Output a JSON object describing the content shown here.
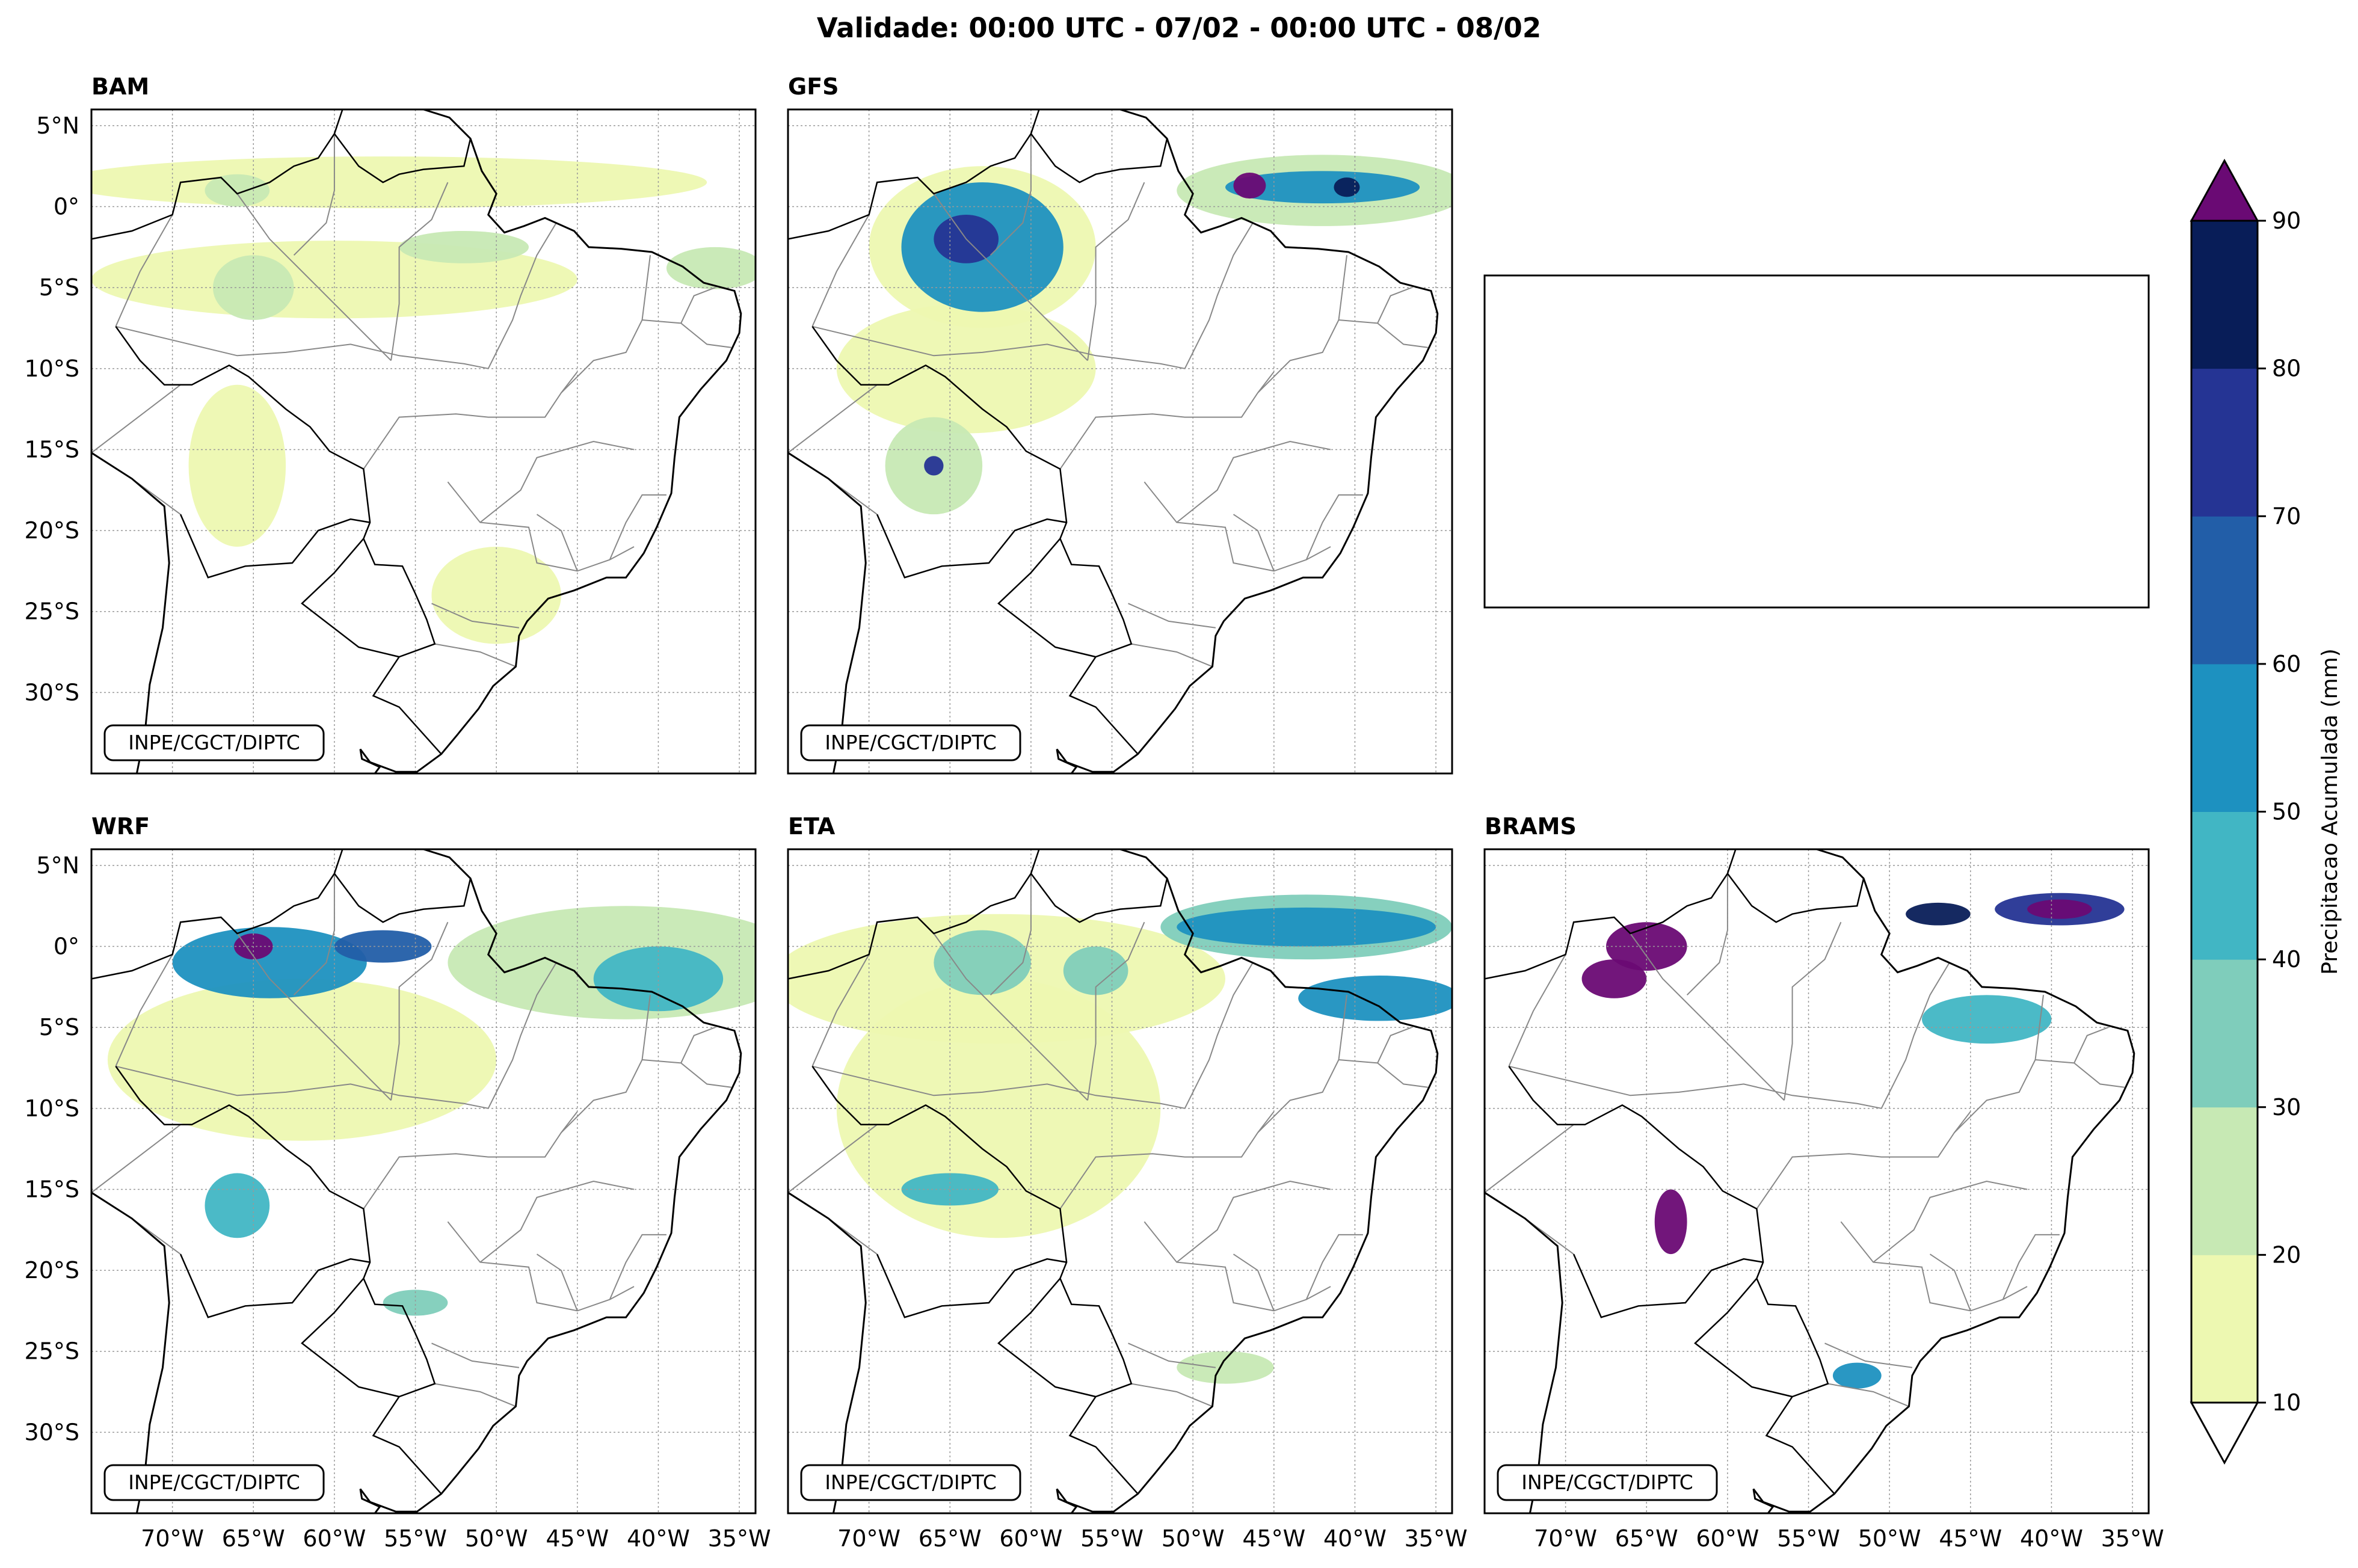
{
  "figure_title": "Validade: 00:00 UTC - 07/02 - 00:00 UTC - 08/02",
  "credit": "INPE/CGCT/DIPTC",
  "panels": [
    {
      "name": "BAM",
      "title": "BAM"
    },
    {
      "name": "GFS",
      "title": "GFS"
    },
    {
      "name": "EMPTY",
      "title": ""
    },
    {
      "name": "WRF",
      "title": "WRF"
    },
    {
      "name": "ETA",
      "title": "ETA"
    },
    {
      "name": "BRAMS",
      "title": "BRAMS"
    }
  ],
  "lat_ticks": [
    "5°N",
    "0°",
    "5°S",
    "10°S",
    "15°S",
    "20°S",
    "25°S",
    "30°S"
  ],
  "lon_ticks": [
    "70°W",
    "65°W",
    "60°W",
    "55°W",
    "50°W",
    "45°W",
    "40°W",
    "35°W"
  ],
  "colorbar": {
    "label": "Precipitacao Acumulada (mm)",
    "ticks": [
      "10",
      "20",
      "30",
      "40",
      "50",
      "60",
      "70",
      "80",
      "90"
    ],
    "levels": [
      10,
      20,
      30,
      40,
      50,
      60,
      70,
      80,
      90
    ],
    "colors": [
      "#edf8b1",
      "#c7e9b4",
      "#7fcdbb",
      "#41b6c4",
      "#1d91c0",
      "#225ea8",
      "#253494",
      "#081d58"
    ],
    "over_color": "#6a0a74",
    "under_color": "#ffffff"
  },
  "chart_data": {
    "type": "heatmap",
    "title": "Validade: 00:00 UTC - 07/02 - 00:00 UTC - 08/02",
    "variable": "Precipitacao Acumulada (mm)",
    "lon_range": [
      -75,
      -34
    ],
    "lat_range": [
      -35,
      6
    ],
    "models": [
      "BAM",
      "GFS",
      "WRF",
      "ETA",
      "BRAMS"
    ],
    "precip_blobs": {
      "BAM": [
        {
          "lon": -57,
          "lat": 1.5,
          "rx": 20,
          "ry": 1.6,
          "level": 10
        },
        {
          "lon": -60,
          "lat": -4.5,
          "rx": 15,
          "ry": 2.4,
          "level": 10
        },
        {
          "lon": -36.5,
          "lat": -3.8,
          "rx": 3,
          "ry": 1.3,
          "level": 20
        },
        {
          "lon": -52,
          "lat": -2.5,
          "rx": 4,
          "ry": 1,
          "level": 20
        },
        {
          "lon": -65,
          "lat": -5,
          "rx": 2.5,
          "ry": 2,
          "level": 20
        },
        {
          "lon": -66,
          "lat": 1,
          "rx": 2,
          "ry": 1,
          "level": 20
        },
        {
          "lon": -66,
          "lat": -16,
          "rx": 3,
          "ry": 5,
          "level": 10
        },
        {
          "lon": -50,
          "lat": -24,
          "rx": 4,
          "ry": 3,
          "level": 10
        }
      ],
      "GFS": [
        {
          "lon": -42,
          "lat": 1,
          "rx": 9,
          "ry": 2.2,
          "level": 20
        },
        {
          "lon": -42,
          "lat": 1.2,
          "rx": 6,
          "ry": 1,
          "level": 50
        },
        {
          "lon": -46.5,
          "lat": 1.3,
          "rx": 1,
          "ry": 0.8,
          "level": 90
        },
        {
          "lon": -40.5,
          "lat": 1.2,
          "rx": 0.8,
          "ry": 0.6,
          "level": 80
        },
        {
          "lon": -63,
          "lat": -2.5,
          "rx": 7,
          "ry": 5,
          "level": 10
        },
        {
          "lon": -63,
          "lat": -2.5,
          "rx": 5,
          "ry": 4,
          "level": 50
        },
        {
          "lon": -64,
          "lat": -2,
          "rx": 2,
          "ry": 1.5,
          "level": 70
        },
        {
          "lon": -66,
          "lat": -16,
          "rx": 3,
          "ry": 3,
          "level": 20
        },
        {
          "lon": -66,
          "lat": -16,
          "rx": 0.6,
          "ry": 0.6,
          "level": 70
        },
        {
          "lon": -64,
          "lat": -10,
          "rx": 8,
          "ry": 4,
          "level": 10
        }
      ],
      "WRF": [
        {
          "lon": -42,
          "lat": -1,
          "rx": 11,
          "ry": 3.5,
          "level": 20
        },
        {
          "lon": -40,
          "lat": -2,
          "rx": 4,
          "ry": 2,
          "level": 40
        },
        {
          "lon": -64,
          "lat": -1,
          "rx": 6,
          "ry": 2.2,
          "level": 50
        },
        {
          "lon": -65,
          "lat": 0,
          "rx": 1.2,
          "ry": 0.8,
          "level": 90
        },
        {
          "lon": -57,
          "lat": 0,
          "rx": 3,
          "ry": 1,
          "level": 60
        },
        {
          "lon": -62,
          "lat": -7,
          "rx": 12,
          "ry": 5,
          "level": 10
        },
        {
          "lon": -66,
          "lat": -16,
          "rx": 2,
          "ry": 2,
          "level": 40
        },
        {
          "lon": -55,
          "lat": -22,
          "rx": 2,
          "ry": 0.8,
          "level": 30
        }
      ],
      "ETA": [
        {
          "lon": -43,
          "lat": 1.2,
          "rx": 9,
          "ry": 2,
          "level": 30
        },
        {
          "lon": -43,
          "lat": 1.2,
          "rx": 8,
          "ry": 1.2,
          "level": 50
        },
        {
          "lon": -38.5,
          "lat": -3.2,
          "rx": 5,
          "ry": 1.4,
          "level": 50
        },
        {
          "lon": -62,
          "lat": -2,
          "rx": 14,
          "ry": 4,
          "level": 10
        },
        {
          "lon": -63,
          "lat": -1,
          "rx": 3,
          "ry": 2,
          "level": 30
        },
        {
          "lon": -56,
          "lat": -1.5,
          "rx": 2,
          "ry": 1.5,
          "level": 30
        },
        {
          "lon": -65,
          "lat": -15,
          "rx": 3,
          "ry": 1,
          "level": 40
        },
        {
          "lon": -62,
          "lat": -10,
          "rx": 10,
          "ry": 8,
          "level": 10
        },
        {
          "lon": -48,
          "lat": -26,
          "rx": 3,
          "ry": 1,
          "level": 20
        }
      ],
      "BRAMS": [
        {
          "lon": -39.5,
          "lat": 2.3,
          "rx": 4,
          "ry": 1,
          "level": 70
        },
        {
          "lon": -39.5,
          "lat": 2.3,
          "rx": 2,
          "ry": 0.6,
          "level": 90
        },
        {
          "lon": -47,
          "lat": 2,
          "rx": 2,
          "ry": 0.7,
          "level": 80
        },
        {
          "lon": -65,
          "lat": 0,
          "rx": 2.5,
          "ry": 1.5,
          "level": 90
        },
        {
          "lon": -67,
          "lat": -2,
          "rx": 2,
          "ry": 1.2,
          "level": 90
        },
        {
          "lon": -44,
          "lat": -4.5,
          "rx": 4,
          "ry": 1.5,
          "level": 40
        },
        {
          "lon": -63.5,
          "lat": -17,
          "rx": 1,
          "ry": 2,
          "level": 90
        },
        {
          "lon": -52,
          "lat": -26.5,
          "rx": 1.5,
          "ry": 0.8,
          "level": 50
        }
      ]
    }
  }
}
